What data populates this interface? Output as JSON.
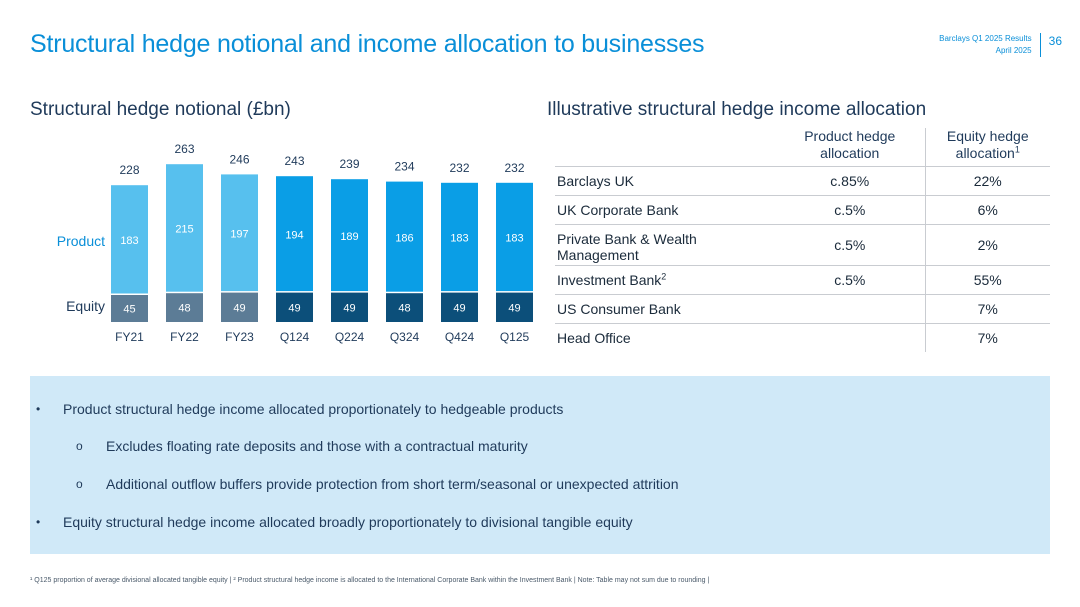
{
  "header": {
    "title": "Structural hedge notional and income allocation to businesses",
    "meta_line1": "Barclays Q1 2025 Results",
    "meta_line2": "April 2025",
    "page_number": "36"
  },
  "chart_section": {
    "title": "Structural hedge notional (£bn)"
  },
  "chart_data": {
    "type": "bar",
    "stacked": true,
    "categories": [
      "FY21",
      "FY22",
      "FY23",
      "Q124",
      "Q224",
      "Q324",
      "Q424",
      "Q125"
    ],
    "series": [
      {
        "name": "Equity",
        "values": [
          45,
          48,
          49,
          49,
          49,
          48,
          49,
          49
        ]
      },
      {
        "name": "Product",
        "values": [
          183,
          215,
          197,
          194,
          189,
          186,
          183,
          183
        ]
      }
    ],
    "totals": [
      228,
      263,
      246,
      243,
      239,
      234,
      232,
      232
    ],
    "colors": {
      "equity_annual": "#5c7c96",
      "equity_quarterly": "#0c4f7a",
      "product_annual": "#57c0ee",
      "product_quarterly": "#0a9ee6",
      "series_label": "#0a8fd8"
    },
    "ylim": [
      0,
      270
    ]
  },
  "table_section": {
    "title": "Illustrative structural hedge income allocation"
  },
  "table": {
    "col1_header": "Product hedge allocation",
    "col2_header": "Equity hedge allocation",
    "col2_header_sup": "1",
    "rows": [
      {
        "name": "Barclays UK",
        "sup": "",
        "product": "c.85%",
        "equity": "22%"
      },
      {
        "name": "UK Corporate Bank",
        "sup": "",
        "product": "c.5%",
        "equity": "6%"
      },
      {
        "name": "Private Bank & Wealth Management",
        "sup": "",
        "product": "c.5%",
        "equity": "2%"
      },
      {
        "name": "Investment Bank",
        "sup": "2",
        "product": "c.5%",
        "equity": "55%"
      },
      {
        "name": "US Consumer Bank",
        "sup": "",
        "product": "",
        "equity": "7%"
      },
      {
        "name": "Head Office",
        "sup": "",
        "product": "",
        "equity": "7%"
      }
    ]
  },
  "info_box": {
    "bullet_marker": "•",
    "sub_marker": "o",
    "bullet1": "Product structural hedge income allocated proportionately to hedgeable products",
    "sub1": "Excludes floating rate deposits and those with a contractual maturity",
    "sub2": "Additional outflow buffers provide protection from short term/seasonal or unexpected attrition",
    "bullet2": "Equity structural hedge income allocated broadly proportionately to divisional tangible equity"
  },
  "footnote": "¹ Q125 proportion of average divisional allocated tangible equity | ² Product structural hedge income is allocated to the International Corporate Bank within the Investment Bank | Note: Table may not sum due to rounding |"
}
